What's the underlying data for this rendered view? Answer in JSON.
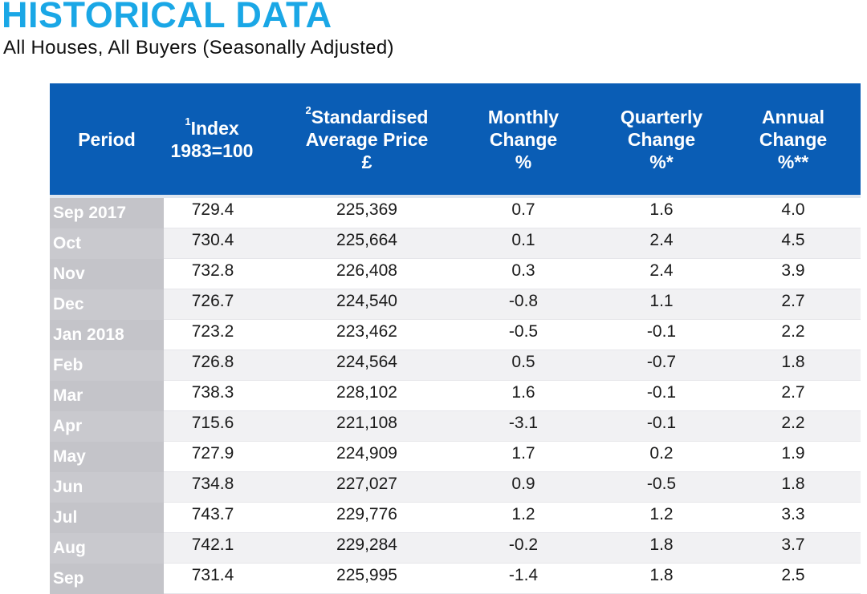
{
  "title": "HISTORICAL DATA",
  "subtitle": "All Houses, All Buyers (Seasonally Adjusted)",
  "colors": {
    "title": "#1aa7e6",
    "header_bg": "#0a5db5",
    "period_bg": "#c4c4c9"
  },
  "headers": {
    "period": "Period",
    "index_sup": "1",
    "index_line1": "Index",
    "index_line2": "1983=100",
    "price_sup": "2",
    "price_line1": "Standardised",
    "price_line2": "Average Price",
    "price_line3": "£",
    "monthly_line1": "Monthly",
    "monthly_line2": "Change",
    "monthly_line3": "%",
    "quarterly_line1": "Quarterly",
    "quarterly_line2": "Change",
    "quarterly_line3": "%*",
    "annual_line1": "Annual",
    "annual_line2": "Change",
    "annual_line3": "%**"
  },
  "rows": [
    {
      "period": "Sep 2017",
      "index": "729.4",
      "price": "225,369",
      "monthly": "0.7",
      "quarterly": "1.6",
      "annual": "4.0"
    },
    {
      "period": "Oct",
      "index": "730.4",
      "price": "225,664",
      "monthly": "0.1",
      "quarterly": "2.4",
      "annual": "4.5"
    },
    {
      "period": "Nov",
      "index": "732.8",
      "price": "226,408",
      "monthly": "0.3",
      "quarterly": "2.4",
      "annual": "3.9"
    },
    {
      "period": "Dec",
      "index": "726.7",
      "price": "224,540",
      "monthly": "-0.8",
      "quarterly": "1.1",
      "annual": "2.7"
    },
    {
      "period": "Jan 2018",
      "index": "723.2",
      "price": "223,462",
      "monthly": "-0.5",
      "quarterly": "-0.1",
      "annual": "2.2"
    },
    {
      "period": "Feb",
      "index": "726.8",
      "price": "224,564",
      "monthly": "0.5",
      "quarterly": "-0.7",
      "annual": "1.8"
    },
    {
      "period": "Mar",
      "index": "738.3",
      "price": "228,102",
      "monthly": "1.6",
      "quarterly": "-0.1",
      "annual": "2.7"
    },
    {
      "period": "Apr",
      "index": "715.6",
      "price": "221,108",
      "monthly": "-3.1",
      "quarterly": "-0.1",
      "annual": "2.2"
    },
    {
      "period": "May",
      "index": "727.9",
      "price": "224,909",
      "monthly": "1.7",
      "quarterly": "0.2",
      "annual": "1.9"
    },
    {
      "period": "Jun",
      "index": "734.8",
      "price": "227,027",
      "monthly": "0.9",
      "quarterly": "-0.5",
      "annual": "1.8"
    },
    {
      "period": "Jul",
      "index": "743.7",
      "price": "229,776",
      "monthly": "1.2",
      "quarterly": "1.2",
      "annual": "3.3"
    },
    {
      "period": "Aug",
      "index": "742.1",
      "price": "229,284",
      "monthly": "-0.2",
      "quarterly": "1.8",
      "annual": "3.7"
    },
    {
      "period": "Sep",
      "index": "731.4",
      "price": "225,995",
      "monthly": "-1.4",
      "quarterly": "1.8",
      "annual": "2.5"
    }
  ]
}
